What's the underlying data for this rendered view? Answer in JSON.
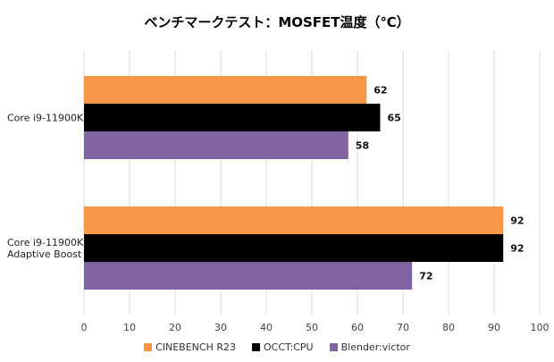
{
  "chart_data": {
    "type": "bar",
    "orientation": "horizontal",
    "title": "ベンチマークテスト：MOSFET温度（℃）",
    "categories": [
      "Core i9-11900K",
      "Core i9-11900K\nAdaptive Boost"
    ],
    "series": [
      {
        "name": "CINEBENCH R23",
        "color": "#F79646",
        "values": [
          62,
          92
        ]
      },
      {
        "name": "OCCT:CPU",
        "color": "#000000",
        "values": [
          65,
          92
        ]
      },
      {
        "name": "Blender:victor",
        "color": "#8064A2",
        "values": [
          58,
          72
        ]
      }
    ],
    "xlim": [
      0,
      100
    ],
    "xticks": [
      0,
      10,
      20,
      30,
      40,
      50,
      60,
      70,
      80,
      90,
      100
    ],
    "grid": true,
    "legend_position": "bottom",
    "data_labels": true
  }
}
